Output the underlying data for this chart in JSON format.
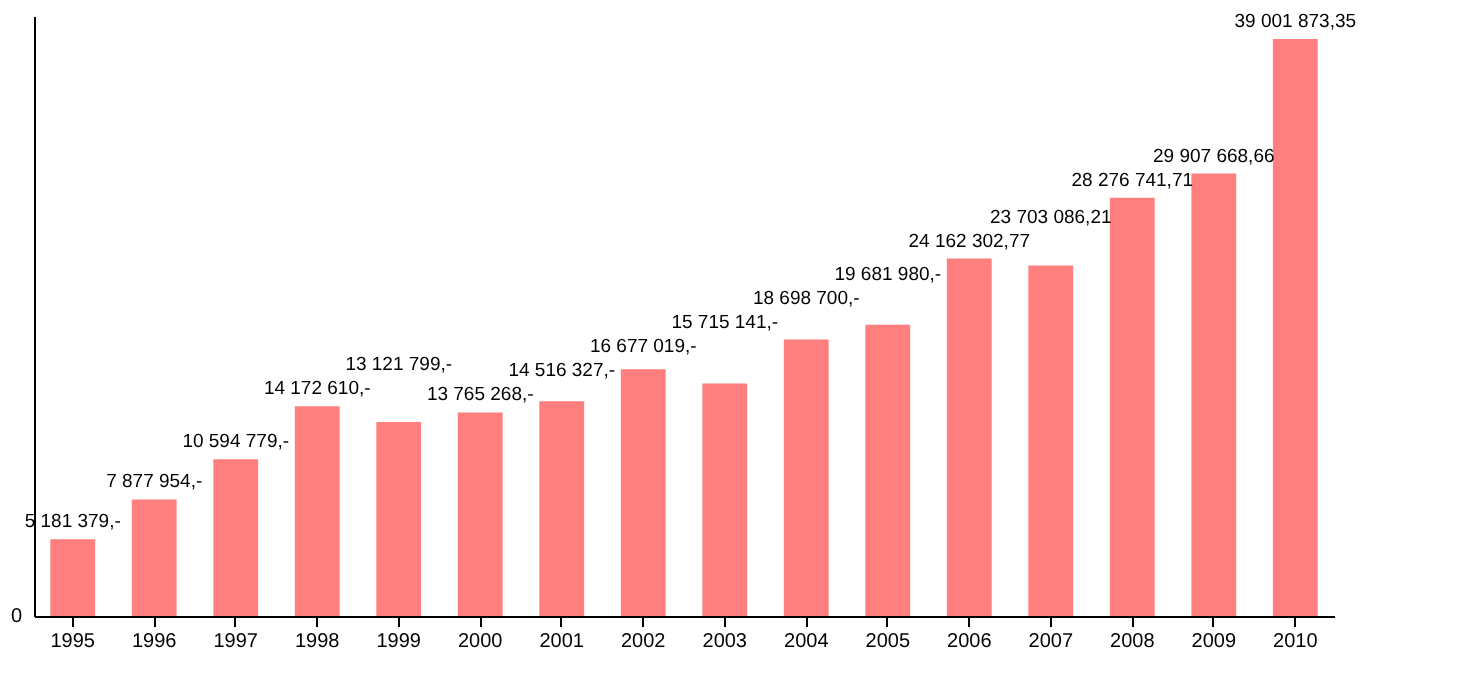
{
  "chart_data": {
    "type": "bar",
    "categories": [
      "1995",
      "1996",
      "1997",
      "1998",
      "1999",
      "2000",
      "2001",
      "2002",
      "2003",
      "2004",
      "2005",
      "2006",
      "2007",
      "2008",
      "2009",
      "2010"
    ],
    "values": [
      5181379,
      7877954,
      10594779,
      14172610,
      13121799,
      13765268,
      14516327,
      16677019,
      15715141,
      18698700,
      19681980,
      24162302.77,
      23703086.21,
      28276741.71,
      29907668.66,
      39001873.35
    ],
    "value_labels": [
      "5 181 379,-",
      "7 877 954,-",
      "10 594 779,-",
      "14 172 610,-",
      "13 121 799,-",
      "13 765 268,-",
      "14 516 327,-",
      "16 677 019,-",
      "15 715 141,-",
      "18 698 700,-",
      "19 681 980,-",
      "24 162 302,77",
      "23 703 086,21",
      "28 276 741,71",
      "29 907 668,66",
      "39 001 873,35"
    ],
    "color": "#ff7f7f",
    "annotations": [
      "0"
    ],
    "tick_labels": "x"
  }
}
